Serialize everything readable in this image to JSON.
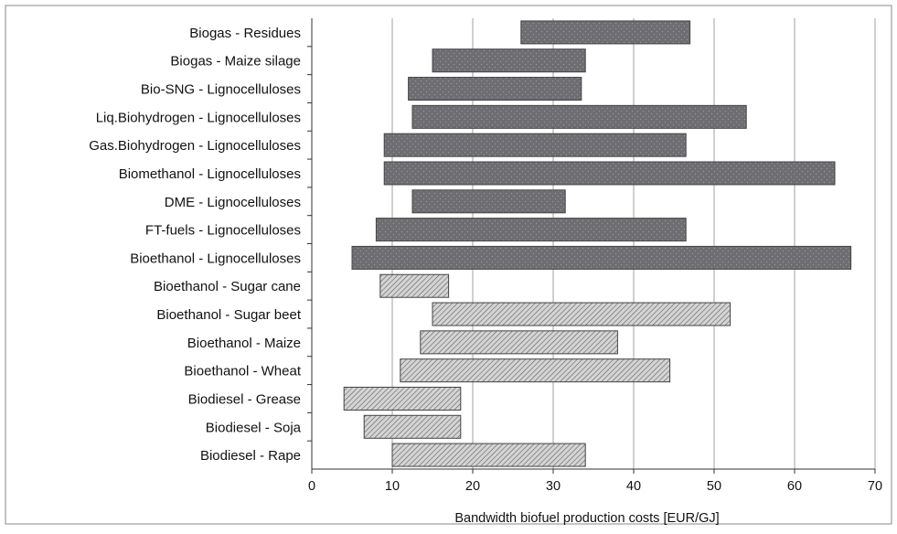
{
  "chart_data": {
    "type": "bar",
    "orientation": "horizontal-range",
    "title": "",
    "xlabel": "Bandwidth biofuel production costs [EUR/GJ]",
    "ylabel": "",
    "xlim": [
      0,
      70
    ],
    "x_ticks": [
      0,
      10,
      20,
      30,
      40,
      50,
      60,
      70
    ],
    "grid": "vertical",
    "legend": "none",
    "colors": {
      "second_generation": "#6e6e72",
      "second_generation_dots": "#9a9aa0",
      "first_generation": "#d4d4d4",
      "first_generation_hatch": "#555555",
      "bar_border": "#444444",
      "grid": "#a0a0a0",
      "axis": "#333333"
    },
    "categories": [
      "Biogas - Residues",
      "Biogas - Maize silage",
      "Bio-SNG - Lignocelluloses",
      "Liq.Biohydrogen - Lignocelluloses",
      "Gas.Biohydrogen - Lignocelluloses",
      "Biomethanol - Lignocelluloses",
      "DME - Lignocelluloses",
      "FT-fuels - Lignocelluloses",
      "Bioethanol - Lignocelluloses",
      "Bioethanol - Sugar cane",
      "Bioethanol - Sugar beet",
      "Bioethanol - Maize",
      "Bioethanol - Wheat",
      "Biodiesel - Grease",
      "Biodiesel - Soja",
      "Biodiesel - Rape"
    ],
    "ranges": [
      {
        "min": 26,
        "max": 47,
        "style": "dotted"
      },
      {
        "min": 15,
        "max": 34,
        "style": "dotted"
      },
      {
        "min": 12,
        "max": 33.5,
        "style": "dotted"
      },
      {
        "min": 12.5,
        "max": 54,
        "style": "dotted"
      },
      {
        "min": 9,
        "max": 46.5,
        "style": "dotted"
      },
      {
        "min": 9,
        "max": 65,
        "style": "dotted"
      },
      {
        "min": 12.5,
        "max": 31.5,
        "style": "dotted"
      },
      {
        "min": 8,
        "max": 46.5,
        "style": "dotted"
      },
      {
        "min": 5,
        "max": 67,
        "style": "dotted"
      },
      {
        "min": 8.5,
        "max": 17,
        "style": "hatched"
      },
      {
        "min": 15,
        "max": 52,
        "style": "hatched"
      },
      {
        "min": 13.5,
        "max": 38,
        "style": "hatched"
      },
      {
        "min": 11,
        "max": 44.5,
        "style": "hatched"
      },
      {
        "min": 4,
        "max": 18.5,
        "style": "hatched"
      },
      {
        "min": 6.5,
        "max": 18.5,
        "style": "hatched"
      },
      {
        "min": 10,
        "max": 34,
        "style": "hatched"
      }
    ]
  }
}
